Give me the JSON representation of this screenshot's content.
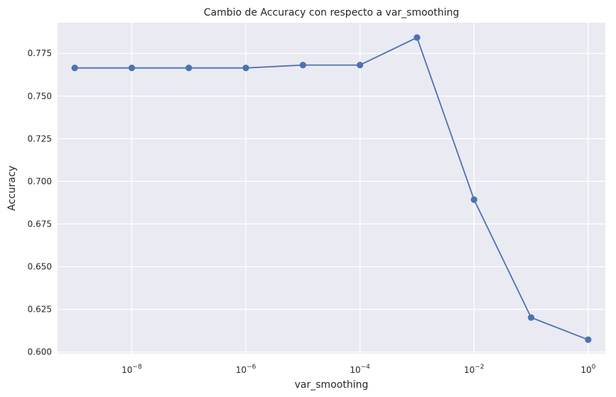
{
  "chart_data": {
    "type": "line",
    "title": "Cambio de Accuracy con respecto a var_smoothing",
    "xlabel": "var_smoothing",
    "ylabel": "Accuracy",
    "x_scale": "log",
    "x": [
      1e-09,
      1e-08,
      1e-07,
      1e-06,
      1e-05,
      0.0001,
      0.001,
      0.01,
      0.1,
      1
    ],
    "series": [
      {
        "values": [
          0.7665,
          0.7665,
          0.7665,
          0.7665,
          0.7682,
          0.7682,
          0.7843,
          0.6893,
          0.6202,
          0.6072
        ]
      }
    ],
    "xlim": [
      5e-10,
      2
    ],
    "ylim": [
      0.599,
      0.793
    ],
    "x_ticks": [
      {
        "value": 1e-08,
        "base": "10",
        "exp": "−8"
      },
      {
        "value": 1e-06,
        "base": "10",
        "exp": "−6"
      },
      {
        "value": 0.0001,
        "base": "10",
        "exp": "−4"
      },
      {
        "value": 0.01,
        "base": "10",
        "exp": "−2"
      },
      {
        "value": 1,
        "base": "10",
        "exp": "0"
      }
    ],
    "y_ticks": [
      "0.600",
      "0.625",
      "0.650",
      "0.675",
      "0.700",
      "0.725",
      "0.750",
      "0.775"
    ],
    "grid": true,
    "colors": {
      "line": "#4c72b0",
      "background": "#eaeaf2",
      "grid": "#ffffff"
    }
  }
}
